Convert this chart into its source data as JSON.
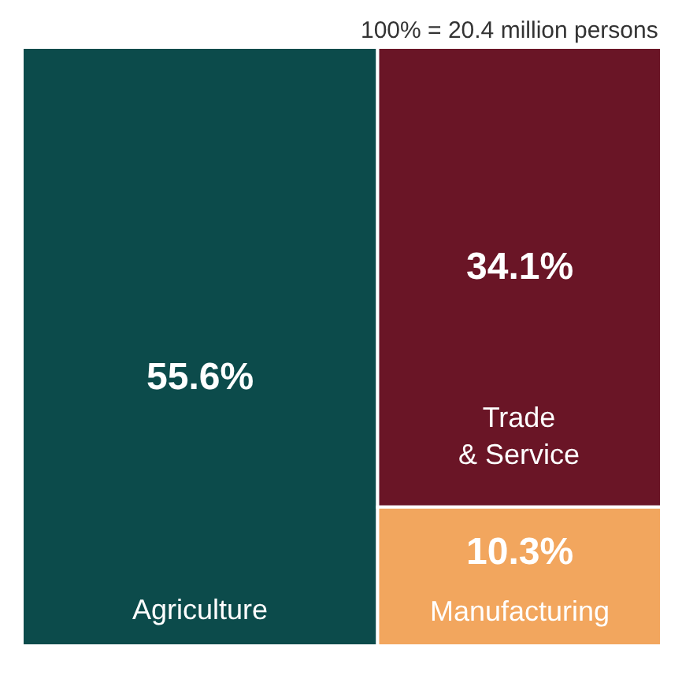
{
  "chart_data": {
    "type": "other",
    "categories": [
      "Agriculture",
      "Trade\n& Service",
      "Manufacturing"
    ],
    "values": [
      55.6,
      34.1,
      10.3
    ],
    "value_labels": [
      "55.6%",
      "34.1%",
      "10.3%"
    ],
    "colors": [
      "#0c4b4b",
      "#6a1526",
      "#f2a65e"
    ],
    "annotations": [
      "100% = 20.4 million persons"
    ]
  }
}
